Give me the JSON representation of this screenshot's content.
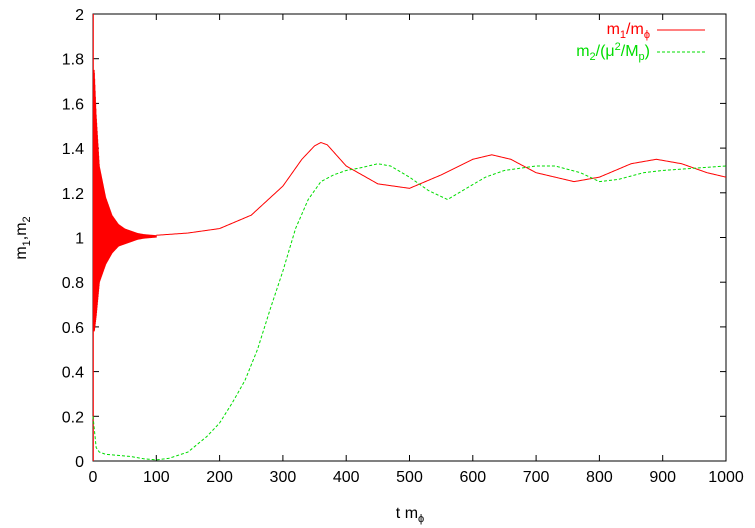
{
  "chart_data": {
    "type": "line",
    "title": "",
    "xlabel": "t m",
    "xlabel_sub": "ϕ",
    "ylabel": "m",
    "ylabel_sub1": "1",
    "ylabel_mid": ",m",
    "ylabel_sub2": "2",
    "xlim": [
      0,
      1000
    ],
    "ylim": [
      0,
      2
    ],
    "x_ticks": [
      0,
      100,
      200,
      300,
      400,
      500,
      600,
      700,
      800,
      900,
      1000
    ],
    "y_ticks": [
      0,
      0.2,
      0.4,
      0.6,
      0.8,
      1,
      1.2,
      1.4,
      1.6,
      1.8,
      2
    ],
    "x_tick_labels": [
      "0",
      "100",
      "200",
      "300",
      "400",
      "500",
      "600",
      "700",
      "800",
      "900",
      "1000"
    ],
    "y_tick_labels": [
      "0",
      "0.2",
      "0.4",
      "0.6",
      "0.8",
      "1",
      "1.2",
      "1.4",
      "1.6",
      "1.8",
      "2"
    ],
    "grid": false,
    "legend_position": "top-right",
    "series": [
      {
        "name": "m1/mϕ",
        "color": "#ff0000",
        "style": "solid",
        "oscillation_band": {
          "x": [
            2,
            5,
            10,
            20,
            30,
            40,
            50,
            60,
            70,
            80,
            100
          ],
          "upper": [
            1.75,
            1.55,
            1.32,
            1.18,
            1.1,
            1.06,
            1.04,
            1.03,
            1.02,
            1.015,
            1.01
          ],
          "lower": [
            0.58,
            0.65,
            0.8,
            0.88,
            0.93,
            0.96,
            0.97,
            0.98,
            0.99,
            0.995,
            1.0
          ]
        },
        "x": [
          100,
          150,
          200,
          250,
          300,
          330,
          350,
          360,
          370,
          400,
          450,
          500,
          550,
          600,
          630,
          660,
          700,
          760,
          800,
          850,
          890,
          930,
          970,
          1000
        ],
        "y": [
          1.01,
          1.02,
          1.04,
          1.1,
          1.23,
          1.35,
          1.41,
          1.425,
          1.415,
          1.32,
          1.24,
          1.22,
          1.28,
          1.35,
          1.37,
          1.35,
          1.29,
          1.25,
          1.27,
          1.33,
          1.35,
          1.33,
          1.29,
          1.27
        ]
      },
      {
        "name": "m2/(μ2/Mp)",
        "color": "#00dd00",
        "style": "dashed",
        "x": [
          0,
          5,
          10,
          20,
          40,
          60,
          80,
          100,
          120,
          150,
          180,
          200,
          220,
          240,
          260,
          280,
          300,
          320,
          340,
          360,
          380,
          400,
          420,
          450,
          470,
          500,
          530,
          560,
          590,
          620,
          650,
          700,
          730,
          770,
          800,
          830,
          870,
          900,
          950,
          1000
        ],
        "y": [
          0.2,
          0.06,
          0.04,
          0.03,
          0.025,
          0.02,
          0.01,
          0.005,
          0.012,
          0.04,
          0.11,
          0.17,
          0.26,
          0.36,
          0.5,
          0.68,
          0.85,
          1.04,
          1.17,
          1.25,
          1.28,
          1.3,
          1.31,
          1.33,
          1.32,
          1.27,
          1.21,
          1.17,
          1.22,
          1.27,
          1.3,
          1.32,
          1.32,
          1.29,
          1.25,
          1.26,
          1.29,
          1.3,
          1.31,
          1.32
        ]
      }
    ],
    "legend": {
      "entry1_main": "m",
      "entry1_sub": "1",
      "entry1_mid": "/m",
      "entry1_sub2": "ϕ",
      "entry2_a": "m",
      "entry2_sub": "2",
      "entry2_b": "/(μ",
      "entry2_sup": "2",
      "entry2_c": "/M",
      "entry2_sub2": "p",
      "entry2_d": ")"
    }
  }
}
